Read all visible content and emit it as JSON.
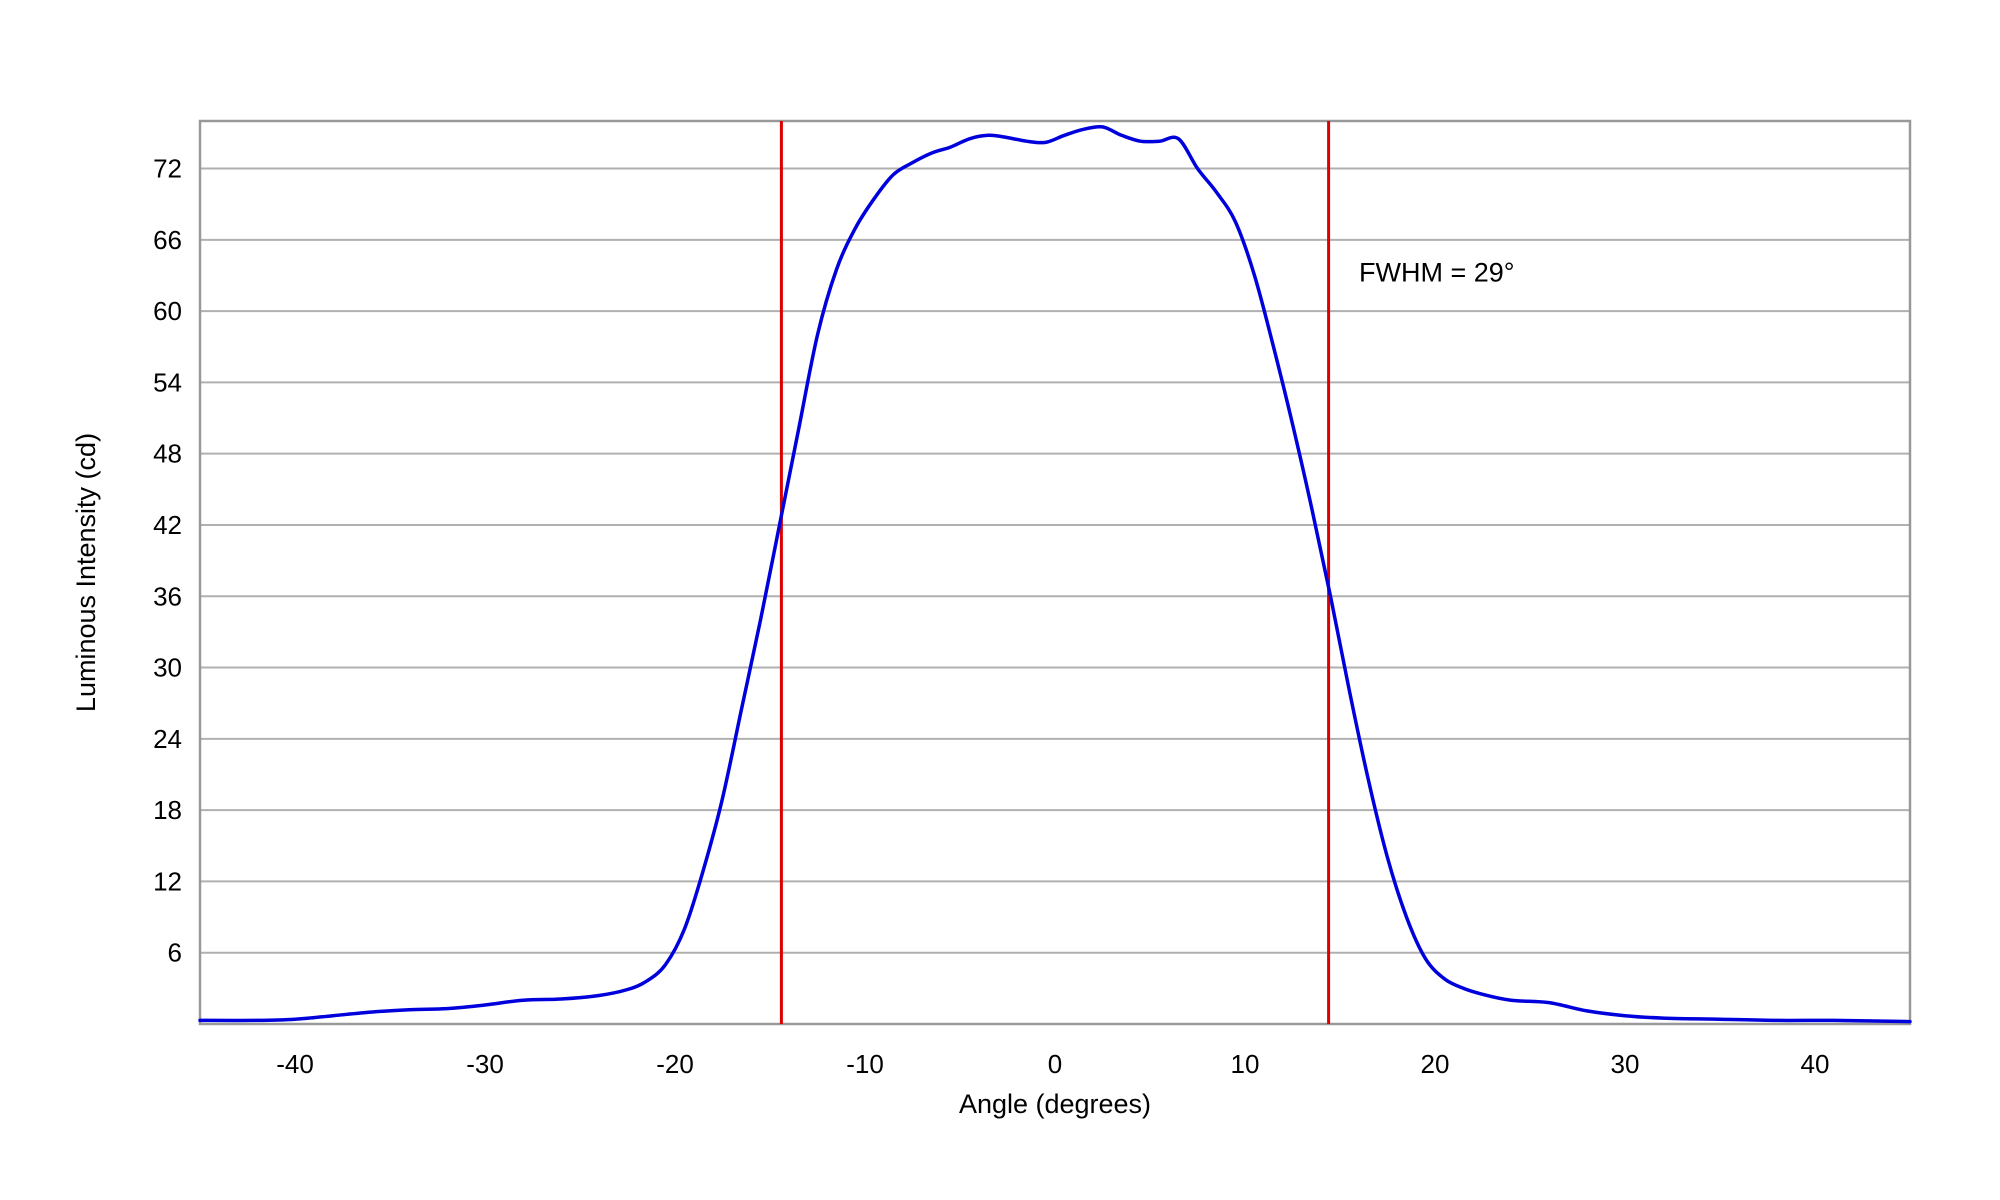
{
  "chart_data": {
    "type": "line",
    "title": "",
    "xlabel": "Angle (degrees)",
    "ylabel": "Luminous Intensity (cd)",
    "xlim": [
      -45,
      45
    ],
    "ylim": [
      0,
      76
    ],
    "xticks": [
      -40,
      -30,
      -20,
      -10,
      0,
      10,
      20,
      30,
      40
    ],
    "yticks": [
      6,
      12,
      18,
      24,
      30,
      36,
      42,
      48,
      54,
      60,
      66,
      72
    ],
    "grid": "horizontal",
    "legend": "none",
    "colors": {
      "series": "#0000dd",
      "markers": "#dd0000",
      "grid": "#b0b0b0",
      "frame": "#999999"
    },
    "series": [
      {
        "x": [
          -45,
          -42,
          -40,
          -38,
          -36,
          -34,
          -32,
          -30,
          -28,
          -26,
          -24,
          -22.5,
          -21.5,
          -20.5,
          -19.5,
          -18.5,
          -17.5,
          -16.5,
          -15.5,
          -14.5,
          -13.5,
          -12.5,
          -11.5,
          -10.5,
          -9.5,
          -8.5,
          -7.5,
          -6.5,
          -5.5,
          -4.5,
          -3.5,
          -2.5,
          -1.5,
          -0.5,
          0.5,
          1.5,
          2.5,
          3.5,
          4.5,
          5.5,
          6.5,
          7.5,
          8.5,
          9.5,
          10.5,
          11.5,
          12.5,
          13.5,
          14.5,
          15.5,
          16.5,
          17.5,
          18.5,
          19.5,
          20.5,
          21.5,
          22.5,
          24,
          26,
          28,
          30,
          32,
          35,
          38,
          41,
          45
        ],
        "values": [
          0.3,
          0.3,
          0.4,
          0.7,
          1.0,
          1.2,
          1.3,
          1.6,
          2.0,
          2.1,
          2.4,
          2.9,
          3.6,
          5.0,
          8.0,
          13.0,
          19.0,
          26.5,
          34.0,
          42.0,
          50.0,
          58.0,
          63.5,
          67.0,
          69.5,
          71.5,
          72.5,
          73.3,
          73.8,
          74.5,
          74.8,
          74.6,
          74.3,
          74.2,
          74.8,
          75.3,
          75.5,
          74.8,
          74.3,
          74.3,
          74.5,
          72.0,
          70.0,
          67.5,
          63.0,
          57.0,
          50.5,
          43.5,
          36.0,
          28.0,
          20.5,
          14.0,
          9.0,
          5.5,
          3.8,
          3.0,
          2.5,
          2.0,
          1.8,
          1.1,
          0.7,
          0.5,
          0.4,
          0.3,
          0.3,
          0.2
        ]
      }
    ],
    "vertical_lines": [
      -14.4,
      14.4
    ],
    "annotation": {
      "text": "FWHM = 29°",
      "x": 16,
      "y": 62.5
    }
  }
}
